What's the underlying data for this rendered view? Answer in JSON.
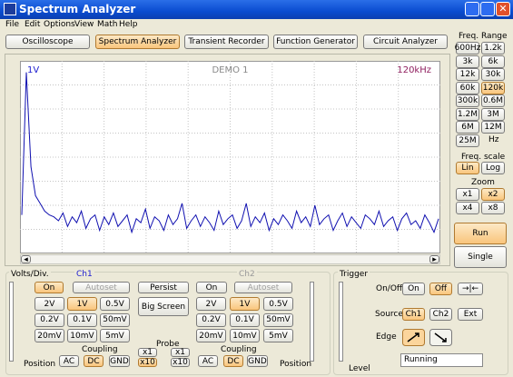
{
  "window": {
    "title": "Spectrum Analyzer"
  },
  "menu": [
    "File",
    "Edit",
    "Options",
    "View",
    "Math",
    "Help"
  ],
  "tabs": [
    "Oscilloscope",
    "Spectrum Analyzer",
    "Transient Recorder",
    "Function Generator",
    "Circuit Analyzer"
  ],
  "screen": {
    "left_label": "1V",
    "center_label": "DEMO 1",
    "right_label": "120kHz",
    "trace": [
      0.2,
      0.94,
      0.45,
      0.3,
      0.26,
      0.22,
      0.2,
      0.19,
      0.17,
      0.21,
      0.14,
      0.19,
      0.16,
      0.22,
      0.13,
      0.18,
      0.2,
      0.12,
      0.19,
      0.15,
      0.21,
      0.14,
      0.17,
      0.2,
      0.11,
      0.18,
      0.16,
      0.23,
      0.13,
      0.19,
      0.17,
      0.12,
      0.2,
      0.15,
      0.18,
      0.26,
      0.13,
      0.17,
      0.2,
      0.14,
      0.19,
      0.16,
      0.12,
      0.22,
      0.15,
      0.18,
      0.2,
      0.13,
      0.17,
      0.26,
      0.14,
      0.19,
      0.16,
      0.21,
      0.12,
      0.18,
      0.15,
      0.2,
      0.17,
      0.13,
      0.22,
      0.16,
      0.19,
      0.14,
      0.25,
      0.15,
      0.18,
      0.2,
      0.12,
      0.17,
      0.21,
      0.14,
      0.19,
      0.16,
      0.13,
      0.2,
      0.18,
      0.15,
      0.22,
      0.14,
      0.17,
      0.19,
      0.12,
      0.18,
      0.21,
      0.15,
      0.17,
      0.13,
      0.2,
      0.16,
      0.11,
      0.18
    ]
  },
  "freq_range": {
    "title": "Freq. Range",
    "buttons": [
      "600Hz",
      "1.2k",
      "3k",
      "6k",
      "12k",
      "30k",
      "60k",
      "120k",
      "300k",
      "0.6M",
      "1.2M",
      "3M",
      "6M",
      "12M",
      "25M"
    ],
    "unit": "Hz"
  },
  "freq_scale": {
    "title": "Freq. scale",
    "buttons": [
      "Lin",
      "Log"
    ]
  },
  "zoom": {
    "title": "Zoom",
    "buttons": [
      "x1",
      "x2",
      "x4",
      "x8"
    ]
  },
  "run": "Run",
  "single": "Single",
  "volts_div": "Volts/Div.",
  "ch1": {
    "title": "Ch1",
    "on": "On",
    "autoset": "Autoset",
    "ranges": [
      "2V",
      "1V",
      "0.5V",
      "0.2V",
      "0.1V",
      "50mV",
      "20mV",
      "10mV",
      "5mV"
    ],
    "coupling": "Coupling",
    "coupling_buttons": [
      "AC",
      "DC",
      "GND"
    ],
    "position": "Position"
  },
  "ch2": {
    "title": "Ch2",
    "on": "On",
    "autoset": "Autoset",
    "ranges": [
      "2V",
      "1V",
      "0.5V",
      "0.2V",
      "0.1V",
      "50mV",
      "20mV",
      "10mV",
      "5mV"
    ],
    "coupling": "Coupling",
    "coupling_buttons": [
      "AC",
      "DC",
      "GND"
    ],
    "position": "Position"
  },
  "persist": "Persist",
  "big_screen": "Big Screen",
  "probe": {
    "title": "Probe",
    "buttons": [
      "x1",
      "x1",
      "x10",
      "x10"
    ]
  },
  "trigger": {
    "title": "Trigger",
    "onoff": "On/Off",
    "on": "On",
    "off": "Off",
    "center": "→|←",
    "source": "Source",
    "sources": [
      "Ch1",
      "Ch2",
      "Ext"
    ],
    "edge": "Edge",
    "status": "Running",
    "level": "Level"
  }
}
